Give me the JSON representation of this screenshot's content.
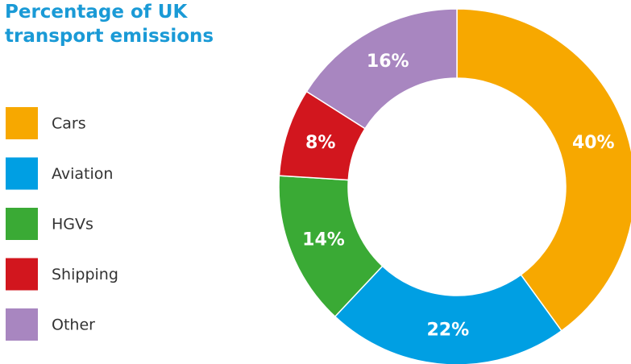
{
  "chart_data": {
    "type": "donut",
    "title": "Percentage of UK transport emissions",
    "categories": [
      "Cars",
      "Aviation",
      "HGVs",
      "Shipping",
      "Other"
    ],
    "values": [
      40,
      22,
      14,
      8,
      16
    ],
    "value_labels": [
      "40%",
      "22%",
      "14%",
      "8%",
      "16%"
    ],
    "colors": [
      "#f7a800",
      "#009fe3",
      "#3aaa35",
      "#d2161e",
      "#a886c0"
    ],
    "legend": "left"
  }
}
